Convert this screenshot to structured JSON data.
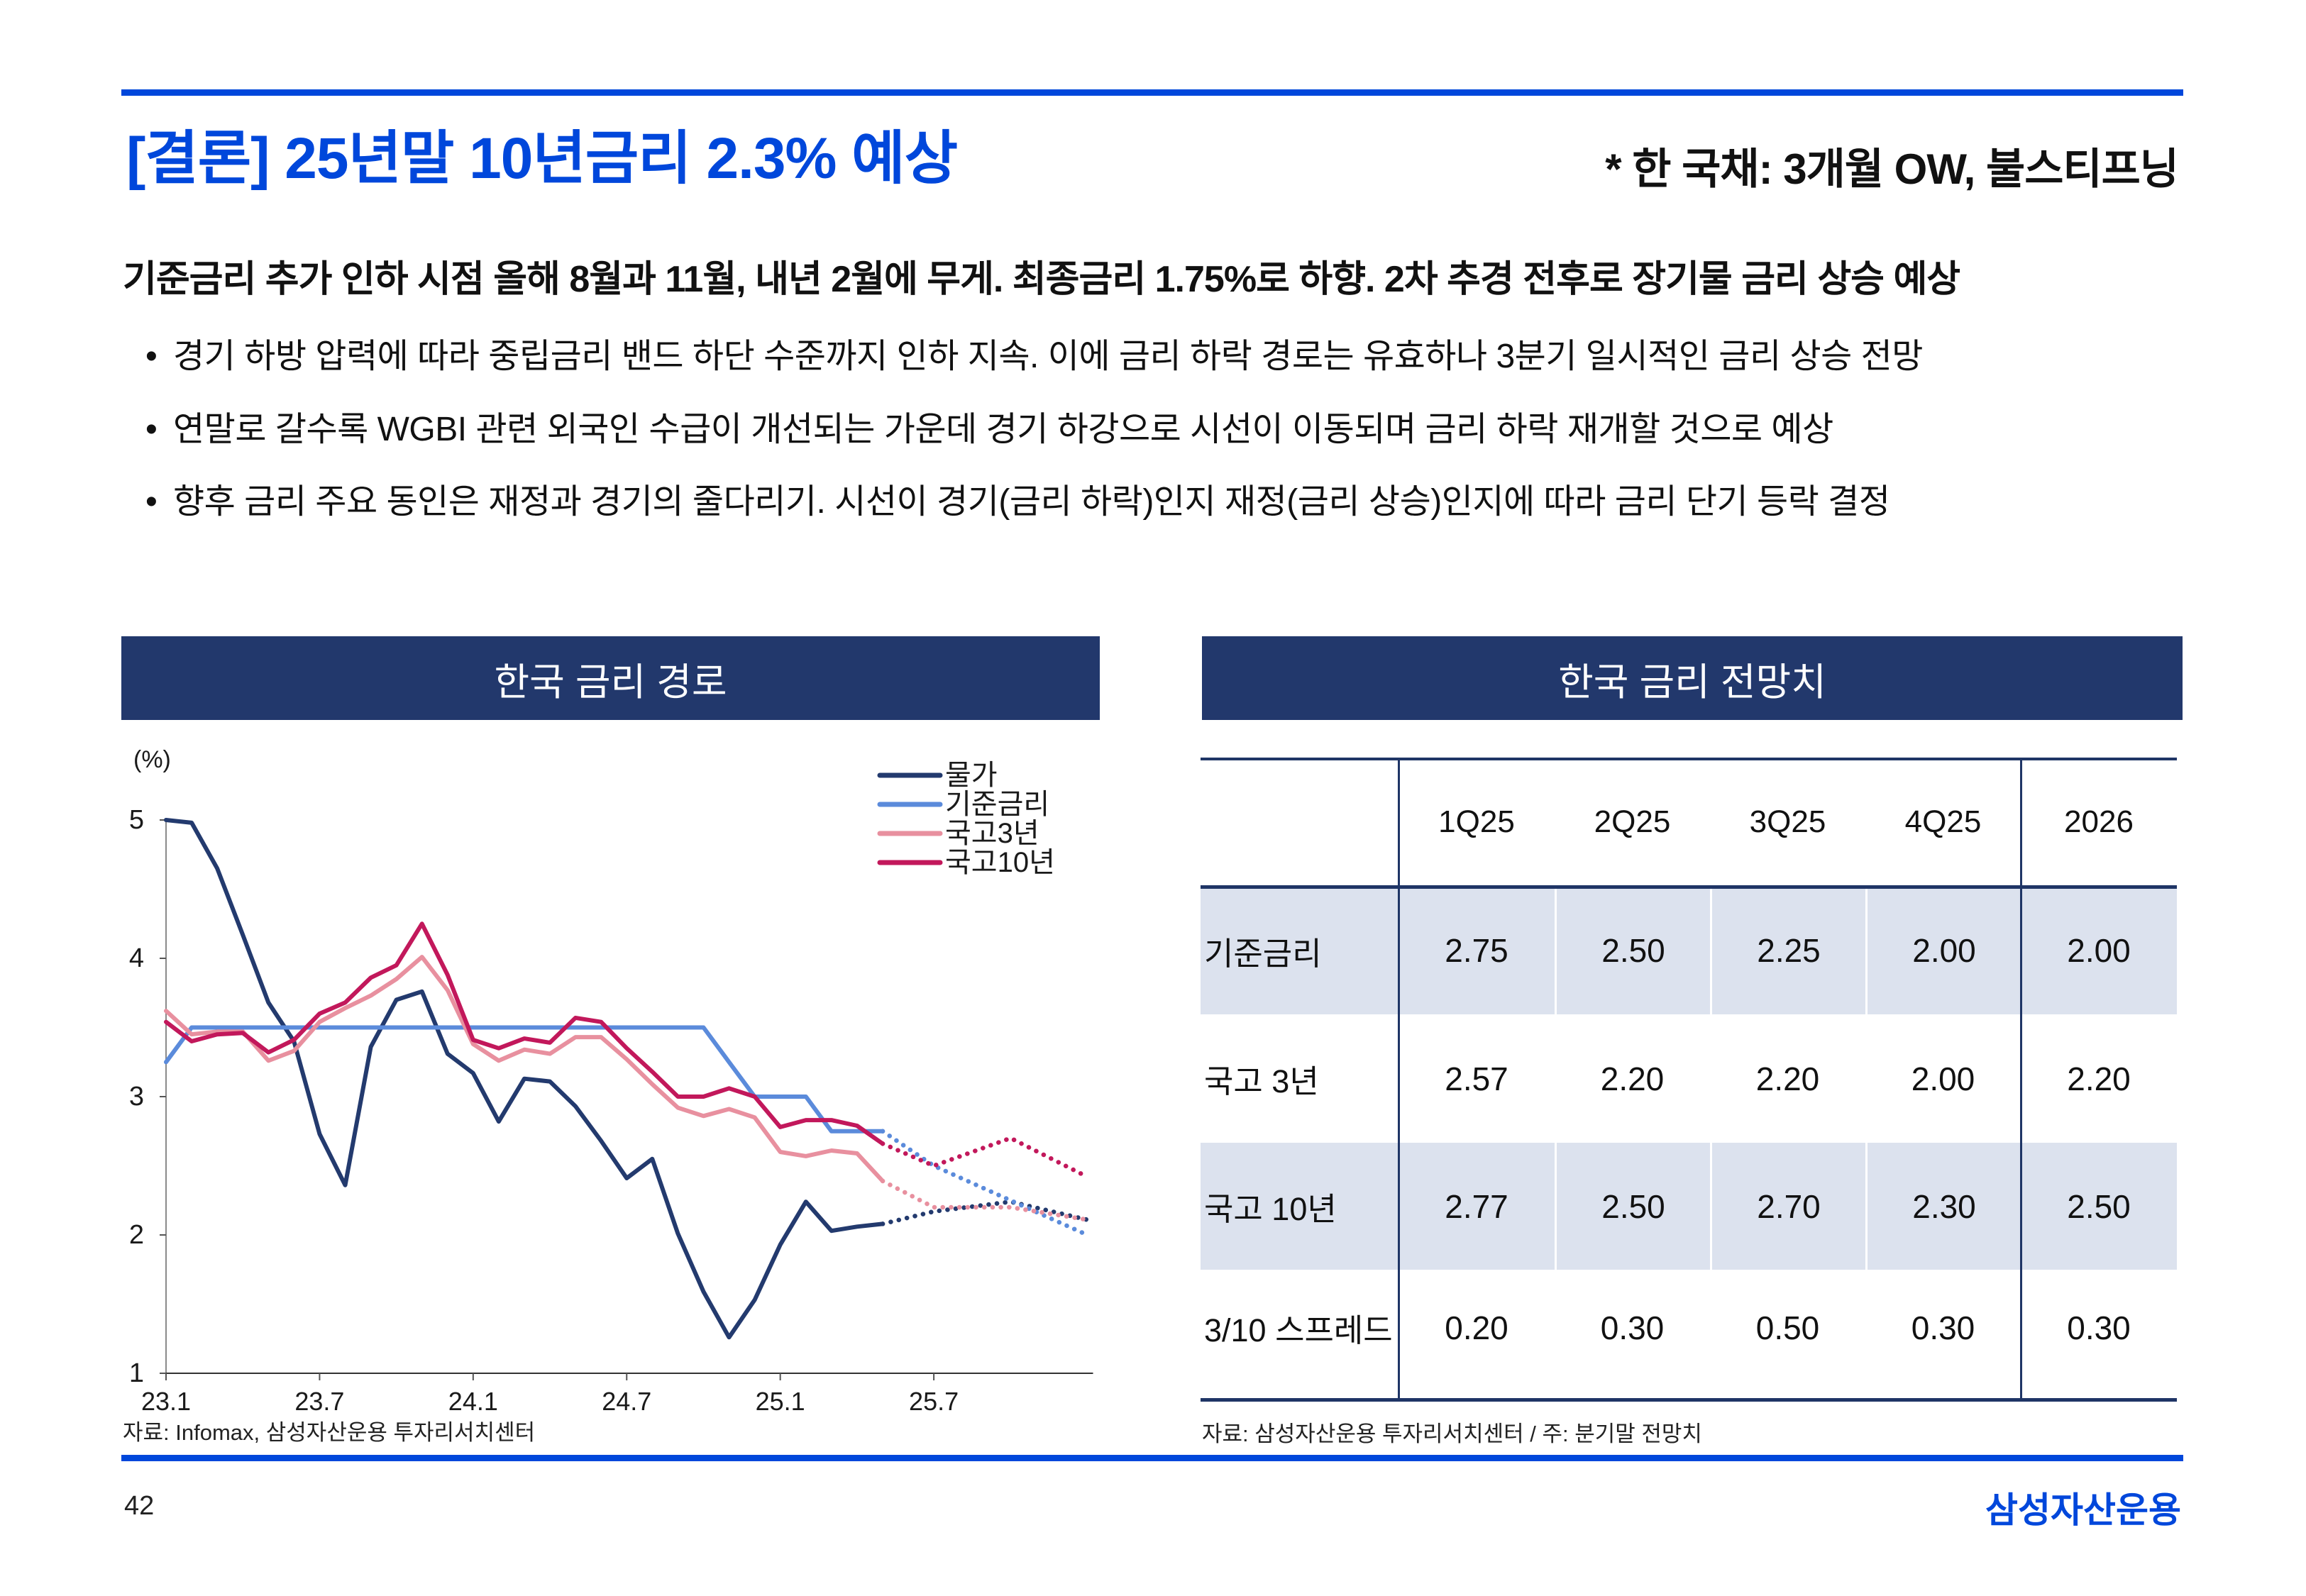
{
  "header": {
    "title": "[결론] 25년말 10년금리 2.3% 예상",
    "tagline": "* 한 국채: 3개월 OW, 불스티프닝"
  },
  "summary": {
    "headline": "기준금리 추가 인하 시점 올해 8월과 11월, 내년 2월에 무게. 최종금리 1.75%로 하향. 2차 추경 전후로 장기물 금리 상승 예상",
    "bullet_icon": "•",
    "bullets": [
      "경기 하방 압력에 따라 중립금리 밴드 하단 수준까지 인하 지속. 이에 금리 하락 경로는 유효하나 3분기 일시적인 금리 상승 전망",
      "연말로 갈수록 WGBI 관련 외국인 수급이 개선되는 가운데 경기 하강으로 시선이 이동되며 금리 하락 재개할 것으로 예상",
      "향후 금리 주요 동인은 재정과 경기의 줄다리기. 시선이 경기(금리 하락)인지 재정(금리 상승)인지에 따라 금리 단기 등락 결정"
    ]
  },
  "left_panel": {
    "title": "한국 금리 경로",
    "source": "자료: Infomax, 삼성자산운용 투자리서치센터"
  },
  "right_panel": {
    "title": "한국 금리 전망치",
    "source": "자료: 삼성자산운용 투자리서치센터 / 주: 분기말 전망치",
    "table": {
      "columns": [
        "",
        "1Q25",
        "2Q25",
        "3Q25",
        "4Q25",
        "2026"
      ],
      "rows": [
        {
          "label": "기준금리",
          "values": [
            "2.75",
            "2.50",
            "2.25",
            "2.00",
            "2.00"
          ]
        },
        {
          "label": "국고 3년",
          "values": [
            "2.57",
            "2.20",
            "2.20",
            "2.00",
            "2.20"
          ]
        },
        {
          "label": "국고 10년",
          "values": [
            "2.77",
            "2.50",
            "2.70",
            "2.30",
            "2.50"
          ]
        },
        {
          "label": "3/10 스프레드",
          "values": [
            "0.20",
            "0.30",
            "0.50",
            "0.30",
            "0.30"
          ]
        }
      ]
    }
  },
  "footer": {
    "page_number": "42",
    "brand": "삼성자산운용"
  },
  "colors": {
    "brand_blue": "#0047DB",
    "panel_header_navy": "#22386C",
    "table_line_navy": "#1F3566",
    "table_shade": "#DCE2EE"
  },
  "chart_data": {
    "type": "line",
    "title": "한국 금리 경로",
    "xlabel": "",
    "ylabel": "(%)",
    "ylim": [
      1,
      5
    ],
    "yticks": [
      5,
      4,
      3,
      2,
      1
    ],
    "grid": false,
    "legend": "top-right",
    "x": [
      "23.1",
      "23.2",
      "23.3",
      "23.4",
      "23.5",
      "23.6",
      "23.7",
      "23.8",
      "23.9",
      "23.10",
      "23.11",
      "23.12",
      "24.1",
      "24.2",
      "24.3",
      "24.4",
      "24.5",
      "24.6",
      "24.7",
      "24.8",
      "24.9",
      "24.10",
      "24.11",
      "24.12",
      "25.1",
      "25.2",
      "25.3",
      "25.4",
      "25.5",
      "25.6",
      "25.7",
      "25.8",
      "25.9",
      "25.10",
      "25.11",
      "25.12",
      "26.1"
    ],
    "x_tick_labels": [
      "23.1",
      "23.7",
      "24.1",
      "24.7",
      "25.1",
      "25.7"
    ],
    "series": [
      {
        "name": "물가",
        "color": "#233A6E",
        "actual": [
          5.0,
          4.98,
          4.65,
          4.17,
          3.68,
          3.4,
          2.73,
          2.36,
          3.36,
          3.7,
          3.76,
          3.31,
          3.17,
          2.82,
          3.13,
          3.11,
          2.93,
          2.68,
          2.41,
          2.55,
          2.01,
          1.59,
          1.26,
          1.53,
          1.93,
          2.24,
          2.03,
          2.06,
          2.08
        ],
        "forecast": {
          "x": [
            "25.5",
            "25.7",
            "25.10",
            "26.1"
          ],
          "values": [
            2.08,
            2.17,
            2.24,
            2.11
          ]
        }
      },
      {
        "name": "기준금리",
        "color": "#5B8BDB",
        "actual": [
          3.25,
          3.5,
          3.5,
          3.5,
          3.5,
          3.5,
          3.5,
          3.5,
          3.5,
          3.5,
          3.5,
          3.5,
          3.5,
          3.5,
          3.5,
          3.5,
          3.5,
          3.5,
          3.5,
          3.5,
          3.5,
          3.5,
          3.25,
          3.0,
          3.0,
          3.0,
          2.75,
          2.75,
          2.75
        ],
        "forecast": {
          "x": [
            "25.5",
            "25.7",
            "25.10",
            "26.1"
          ],
          "values": [
            2.75,
            2.5,
            2.25,
            2.0
          ]
        }
      },
      {
        "name": "국고3년",
        "color": "#E8909F",
        "actual": [
          3.62,
          3.45,
          3.47,
          3.47,
          3.26,
          3.33,
          3.54,
          3.64,
          3.73,
          3.85,
          4.01,
          3.77,
          3.38,
          3.26,
          3.34,
          3.31,
          3.43,
          3.43,
          3.27,
          3.09,
          2.92,
          2.86,
          2.91,
          2.85,
          2.6,
          2.57,
          2.61,
          2.59,
          2.39
        ],
        "forecast": {
          "x": [
            "25.5",
            "25.7",
            "25.10",
            "26.1"
          ],
          "values": [
            2.39,
            2.2,
            2.2,
            2.11
          ]
        }
      },
      {
        "name": "국고10년",
        "color": "#C2185B",
        "actual": [
          3.54,
          3.4,
          3.45,
          3.46,
          3.32,
          3.41,
          3.6,
          3.68,
          3.86,
          3.95,
          4.25,
          3.88,
          3.41,
          3.35,
          3.42,
          3.39,
          3.57,
          3.54,
          3.35,
          3.18,
          3.0,
          3.0,
          3.06,
          3.0,
          2.78,
          2.83,
          2.83,
          2.79,
          2.66
        ],
        "forecast": {
          "x": [
            "25.5",
            "25.7",
            "25.10",
            "26.1"
          ],
          "values": [
            2.66,
            2.5,
            2.7,
            2.42
          ]
        }
      }
    ],
    "source": "자료: Infomax, 삼성자산운용 투자리서치센터"
  }
}
